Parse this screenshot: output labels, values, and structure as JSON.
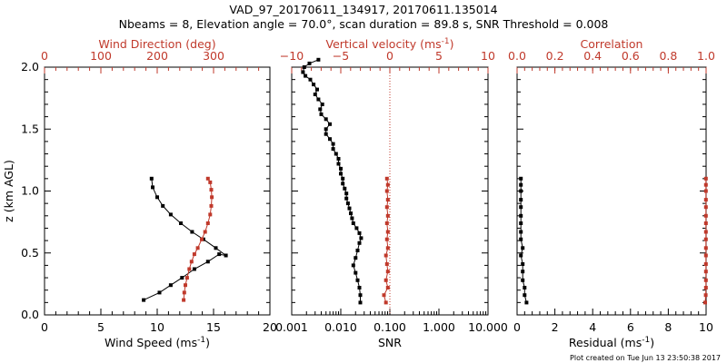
{
  "title_line1": "VAD_97_20170611_134917, 20170611.135014",
  "title_line2": "Nbeams = 8, Elevation angle = 70.0°, scan duration = 89.8 s, SNR Threshold = 0.008",
  "footer": "Plot created on Tue Jun 13 23:50:38 2017",
  "colors": {
    "primary": "#000000",
    "secondary": "#c0392b"
  },
  "chart_data": [
    {
      "type": "line",
      "ylabel": "z (km AGL)",
      "ylim": [
        0,
        2.0
      ],
      "yticks": [
        "0.0",
        "0.5",
        "1.0",
        "1.5",
        "2.0"
      ],
      "bottom_axis": {
        "label": "Wind Speed (ms",
        "label_sup": "-1",
        "label_end": ")",
        "range": [
          0,
          20
        ],
        "ticks": [
          "0",
          "5",
          "10",
          "15",
          "20"
        ]
      },
      "top_axis": {
        "label": "Wind Direction (deg)",
        "range": [
          0,
          400
        ],
        "ticks": [
          "0",
          "100",
          "200",
          "300"
        ]
      },
      "series": [
        {
          "axis": "bottom",
          "color": "#000000",
          "x": [
            8.8,
            10.2,
            11.2,
            12.2,
            13.3,
            14.5,
            15.5,
            16.1,
            15.2,
            14.1,
            13.1,
            12.1,
            11.2,
            10.5,
            10.0,
            9.6,
            9.5
          ],
          "y": [
            0.12,
            0.18,
            0.24,
            0.3,
            0.37,
            0.43,
            0.49,
            0.48,
            0.54,
            0.61,
            0.67,
            0.74,
            0.81,
            0.88,
            0.95,
            1.03,
            1.1
          ]
        },
        {
          "axis": "top",
          "color": "#c0392b",
          "x": [
            247,
            248,
            250,
            253,
            257,
            261,
            266,
            272,
            279,
            285,
            290,
            294,
            296,
            297,
            296,
            294,
            290
          ],
          "y": [
            0.12,
            0.18,
            0.24,
            0.3,
            0.37,
            0.43,
            0.49,
            0.54,
            0.61,
            0.67,
            0.74,
            0.81,
            0.88,
            0.95,
            1.01,
            1.07,
            1.1
          ]
        }
      ]
    },
    {
      "type": "line",
      "ylim": [
        0,
        2.0
      ],
      "bottom_axis": {
        "label": "SNR",
        "scale": "log",
        "range": [
          0.001,
          10
        ],
        "ticks": [
          "0.001",
          "0.010",
          "0.100",
          "1.000",
          "10.000"
        ]
      },
      "top_axis": {
        "label": "Vertical velocity (ms",
        "label_sup": "-1",
        "label_end": ")",
        "range": [
          -10,
          10
        ],
        "ticks": [
          "−10",
          "−5",
          "0",
          "5",
          "10"
        ]
      },
      "reference_line": {
        "axis": "top",
        "value": 0,
        "style": "dotted"
      },
      "series": [
        {
          "axis": "bottom",
          "color": "#000000",
          "x": [
            0.025,
            0.025,
            0.024,
            0.022,
            0.02,
            0.018,
            0.02,
            0.022,
            0.024,
            0.026,
            0.024,
            0.021,
            0.018,
            0.017,
            0.016,
            0.015,
            0.014,
            0.013,
            0.013,
            0.012,
            0.011,
            0.011,
            0.01,
            0.01,
            0.009,
            0.009,
            0.008,
            0.007,
            0.007,
            0.006,
            0.005,
            0.005,
            0.006,
            0.005,
            0.004,
            0.0038,
            0.0042,
            0.0035,
            0.003,
            0.0033,
            0.0028,
            0.0024,
            0.0019,
            0.0017,
            0.0018,
            0.0023,
            0.0035
          ],
          "y": [
            0.1,
            0.16,
            0.22,
            0.28,
            0.34,
            0.4,
            0.46,
            0.52,
            0.58,
            0.62,
            0.66,
            0.7,
            0.74,
            0.78,
            0.82,
            0.86,
            0.9,
            0.94,
            0.98,
            1.02,
            1.06,
            1.1,
            1.14,
            1.18,
            1.22,
            1.26,
            1.3,
            1.34,
            1.38,
            1.42,
            1.46,
            1.5,
            1.54,
            1.58,
            1.62,
            1.66,
            1.7,
            1.74,
            1.78,
            1.82,
            1.86,
            1.9,
            1.93,
            1.96,
            2.0,
            2.03,
            2.06
          ]
        },
        {
          "axis": "top",
          "color": "#c0392b",
          "x": [
            -0.4,
            -0.6,
            -0.2,
            -0.4,
            -0.2,
            -0.3,
            -0.4,
            -0.2,
            -0.3,
            -0.2,
            -0.3,
            -0.2,
            -0.3,
            -0.2,
            -0.3,
            -0.2,
            -0.3
          ],
          "y": [
            0.1,
            0.16,
            0.22,
            0.28,
            0.35,
            0.41,
            0.48,
            0.54,
            0.61,
            0.67,
            0.74,
            0.8,
            0.87,
            0.93,
            1.0,
            1.05,
            1.1
          ]
        }
      ]
    },
    {
      "type": "line",
      "ylim": [
        0,
        2.0
      ],
      "bottom_axis": {
        "label": "Residual (ms",
        "label_sup": "-1",
        "label_end": ")",
        "range": [
          0,
          10
        ],
        "ticks": [
          "0",
          "2",
          "4",
          "6",
          "8",
          "10"
        ]
      },
      "top_axis": {
        "label": "Correlation",
        "range": [
          0,
          1.0
        ],
        "ticks": [
          "0.0",
          "0.2",
          "0.4",
          "0.6",
          "0.8",
          "1.0"
        ]
      },
      "series": [
        {
          "axis": "bottom",
          "color": "#000000",
          "x": [
            0.5,
            0.4,
            0.4,
            0.3,
            0.3,
            0.3,
            0.2,
            0.3,
            0.2,
            0.2,
            0.2,
            0.2,
            0.2,
            0.2,
            0.2,
            0.2,
            0.2
          ],
          "y": [
            0.1,
            0.16,
            0.22,
            0.28,
            0.35,
            0.41,
            0.48,
            0.54,
            0.61,
            0.67,
            0.74,
            0.8,
            0.87,
            0.93,
            1.0,
            1.05,
            1.1
          ]
        },
        {
          "axis": "top",
          "color": "#c0392b",
          "x": [
            0.995,
            0.998,
            0.999,
            0.999,
            0.999,
            0.999,
            0.999,
            0.999,
            0.999,
            0.999,
            0.999,
            0.999,
            0.999,
            0.999,
            0.999,
            0.999,
            0.999
          ],
          "y": [
            0.1,
            0.16,
            0.22,
            0.28,
            0.35,
            0.41,
            0.48,
            0.54,
            0.61,
            0.67,
            0.74,
            0.8,
            0.87,
            0.93,
            1.0,
            1.05,
            1.1
          ]
        }
      ]
    }
  ]
}
